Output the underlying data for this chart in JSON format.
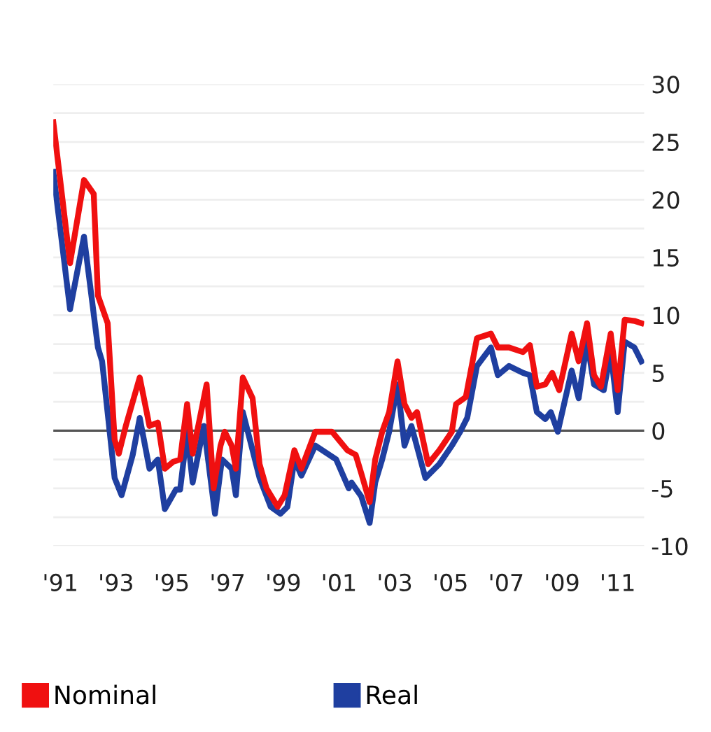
{
  "chart_data": {
    "type": "line",
    "xlim": [
      1990.75,
      2011.95
    ],
    "ylim": [
      -10,
      30
    ],
    "xticks": [
      {
        "value": 1991,
        "label": "'91"
      },
      {
        "value": 1993,
        "label": "'93"
      },
      {
        "value": 1995,
        "label": "'95"
      },
      {
        "value": 1997,
        "label": "'97"
      },
      {
        "value": 1999,
        "label": "'99"
      },
      {
        "value": 2001,
        "label": "'01"
      },
      {
        "value": 2003,
        "label": "'03"
      },
      {
        "value": 2005,
        "label": "'05"
      },
      {
        "value": 2007,
        "label": "'07"
      },
      {
        "value": 2009,
        "label": "'09"
      },
      {
        "value": 2011,
        "label": "'11"
      }
    ],
    "yticks": [
      -10,
      {
        "value": -7.5,
        "label": null
      },
      -5,
      {
        "value": -2.5,
        "label": null
      },
      0,
      {
        "value": 2.5,
        "label": null
      },
      5,
      {
        "value": 7.5,
        "label": null
      },
      10,
      {
        "value": 12.5,
        "label": null
      },
      15,
      {
        "value": 17.5,
        "label": null
      },
      20,
      {
        "value": 22.5,
        "label": null
      },
      25,
      {
        "value": 27.5,
        "label": null
      },
      30
    ],
    "grid": "y",
    "legend": "bottom",
    "marker": "none",
    "line_style": "solid",
    "ref_lines": [
      {
        "axis": "y",
        "value": 0,
        "color": "#555555"
      }
    ],
    "series": [
      {
        "name": "Nominal",
        "color": "#f01010",
        "x": [
          1990.75,
          1991.35,
          1991.85,
          1992.2,
          1992.35,
          1992.7,
          1992.95,
          1993.1,
          1993.35,
          1993.85,
          1994.2,
          1994.5,
          1994.75,
          1995.05,
          1995.3,
          1995.55,
          1995.75,
          1996.25,
          1996.5,
          1996.75,
          1996.9,
          1997.15,
          1997.3,
          1997.55,
          1997.9,
          1998.15,
          1998.4,
          1998.8,
          1999.05,
          1999.4,
          1999.65,
          2000.15,
          2000.75,
          2001.3,
          2001.6,
          2001.8,
          2002.1,
          2002.3,
          2002.55,
          2002.8,
          2003.1,
          2003.35,
          2003.6,
          2003.8,
          2004.2,
          2004.6,
          2005.05,
          2005.2,
          2005.55,
          2005.95,
          2006.45,
          2006.7,
          2007.1,
          2007.6,
          2007.85,
          2008.1,
          2008.4,
          2008.65,
          2008.9,
          2009.35,
          2009.6,
          2009.9,
          2010.15,
          2010.4,
          2010.75,
          2011.0,
          2011.25,
          2011.6,
          2011.85
        ],
        "values": [
          26.7,
          14.5,
          21.7,
          20.5,
          11.7,
          9.3,
          -0.8,
          -2,
          0.4,
          4.6,
          0.4,
          0.7,
          -3.3,
          -2.7,
          -2.5,
          2.3,
          -2,
          4,
          -5,
          -1.3,
          -0.1,
          -1.3,
          -3.3,
          4.6,
          2.8,
          -2.9,
          -5,
          -6.6,
          -5.6,
          -1.7,
          -3.3,
          -0.1,
          -0.1,
          -1.7,
          -2.1,
          -3.7,
          -6.2,
          -2.5,
          -0.1,
          1.6,
          6,
          2.3,
          1.1,
          1.6,
          -2.9,
          -1.7,
          -0.1,
          2.3,
          2.9,
          8,
          8.4,
          7.2,
          7.2,
          6.8,
          7.4,
          3.8,
          4,
          5,
          3.5,
          8.4,
          6,
          9.3,
          4.8,
          3.8,
          8.4,
          3.5,
          9.6,
          9.5,
          9.3
        ]
      },
      {
        "name": "Real",
        "color": "#1f3fa0",
        "x": [
          1990.75,
          1991.35,
          1991.85,
          1992.35,
          1992.5,
          1992.95,
          1993.2,
          1993.6,
          1993.85,
          1994.2,
          1994.5,
          1994.75,
          1995.15,
          1995.3,
          1995.55,
          1995.75,
          1996.15,
          1996.55,
          1996.8,
          1997.15,
          1997.3,
          1997.55,
          1997.9,
          1998.15,
          1998.55,
          1998.9,
          1999.15,
          1999.4,
          1999.65,
          2000.15,
          2000.9,
          2001.35,
          2001.45,
          2001.8,
          2002.1,
          2002.3,
          2002.55,
          2002.8,
          2003.1,
          2003.35,
          2003.6,
          2004.1,
          2004.6,
          2005.05,
          2005.35,
          2005.6,
          2005.95,
          2006.45,
          2006.7,
          2007.1,
          2007.6,
          2007.85,
          2008.1,
          2008.4,
          2008.6,
          2008.85,
          2009.35,
          2009.6,
          2009.9,
          2010.15,
          2010.5,
          2010.75,
          2011.0,
          2011.25,
          2011.6,
          2011.85
        ],
        "values": [
          22.4,
          10.5,
          16.8,
          7.2,
          6,
          -4.1,
          -5.6,
          -2.1,
          1.1,
          -3.3,
          -2.5,
          -6.8,
          -5.1,
          -5.1,
          -0.1,
          -4.5,
          0.4,
          -7.2,
          -2.5,
          -3.3,
          -5.6,
          1.6,
          -1.7,
          -4.1,
          -6.6,
          -7.2,
          -6.6,
          -2.5,
          -3.9,
          -1.3,
          -2.5,
          -5,
          -4.5,
          -5.7,
          -8,
          -4.5,
          -2.5,
          -0.1,
          4,
          -1.3,
          0.4,
          -4.1,
          -2.9,
          -1.3,
          -0.1,
          1.1,
          5.6,
          7.2,
          4.8,
          5.6,
          5,
          4.8,
          1.6,
          1,
          1.6,
          -0.1,
          5.2,
          2.8,
          7.7,
          4,
          3.5,
          6.8,
          1.6,
          7.7,
          7.2,
          6
        ]
      }
    ]
  }
}
